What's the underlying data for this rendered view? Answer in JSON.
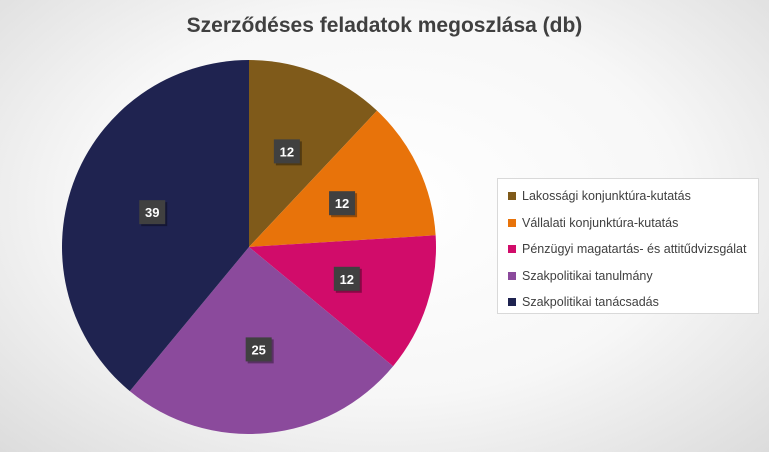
{
  "chart_data": {
    "type": "pie",
    "title": "Szerződéses feladatok megoszlása (db)",
    "categories": [
      "Lakossági konjunktúra-kutatás",
      "Vállalati konjunktúra-kutatás",
      "Pénzügyi magatartás- és attitűdvizsgálat",
      "Szakpolitikai tanulmány",
      "Szakpolitikai tanácsadás"
    ],
    "values": [
      12,
      12,
      12,
      25,
      39
    ],
    "colors": [
      "#7f5a1a",
      "#e8730a",
      "#d10c6a",
      "#8b4a9c",
      "#1f2350"
    ],
    "legend_position": "right",
    "data_labels": true
  }
}
